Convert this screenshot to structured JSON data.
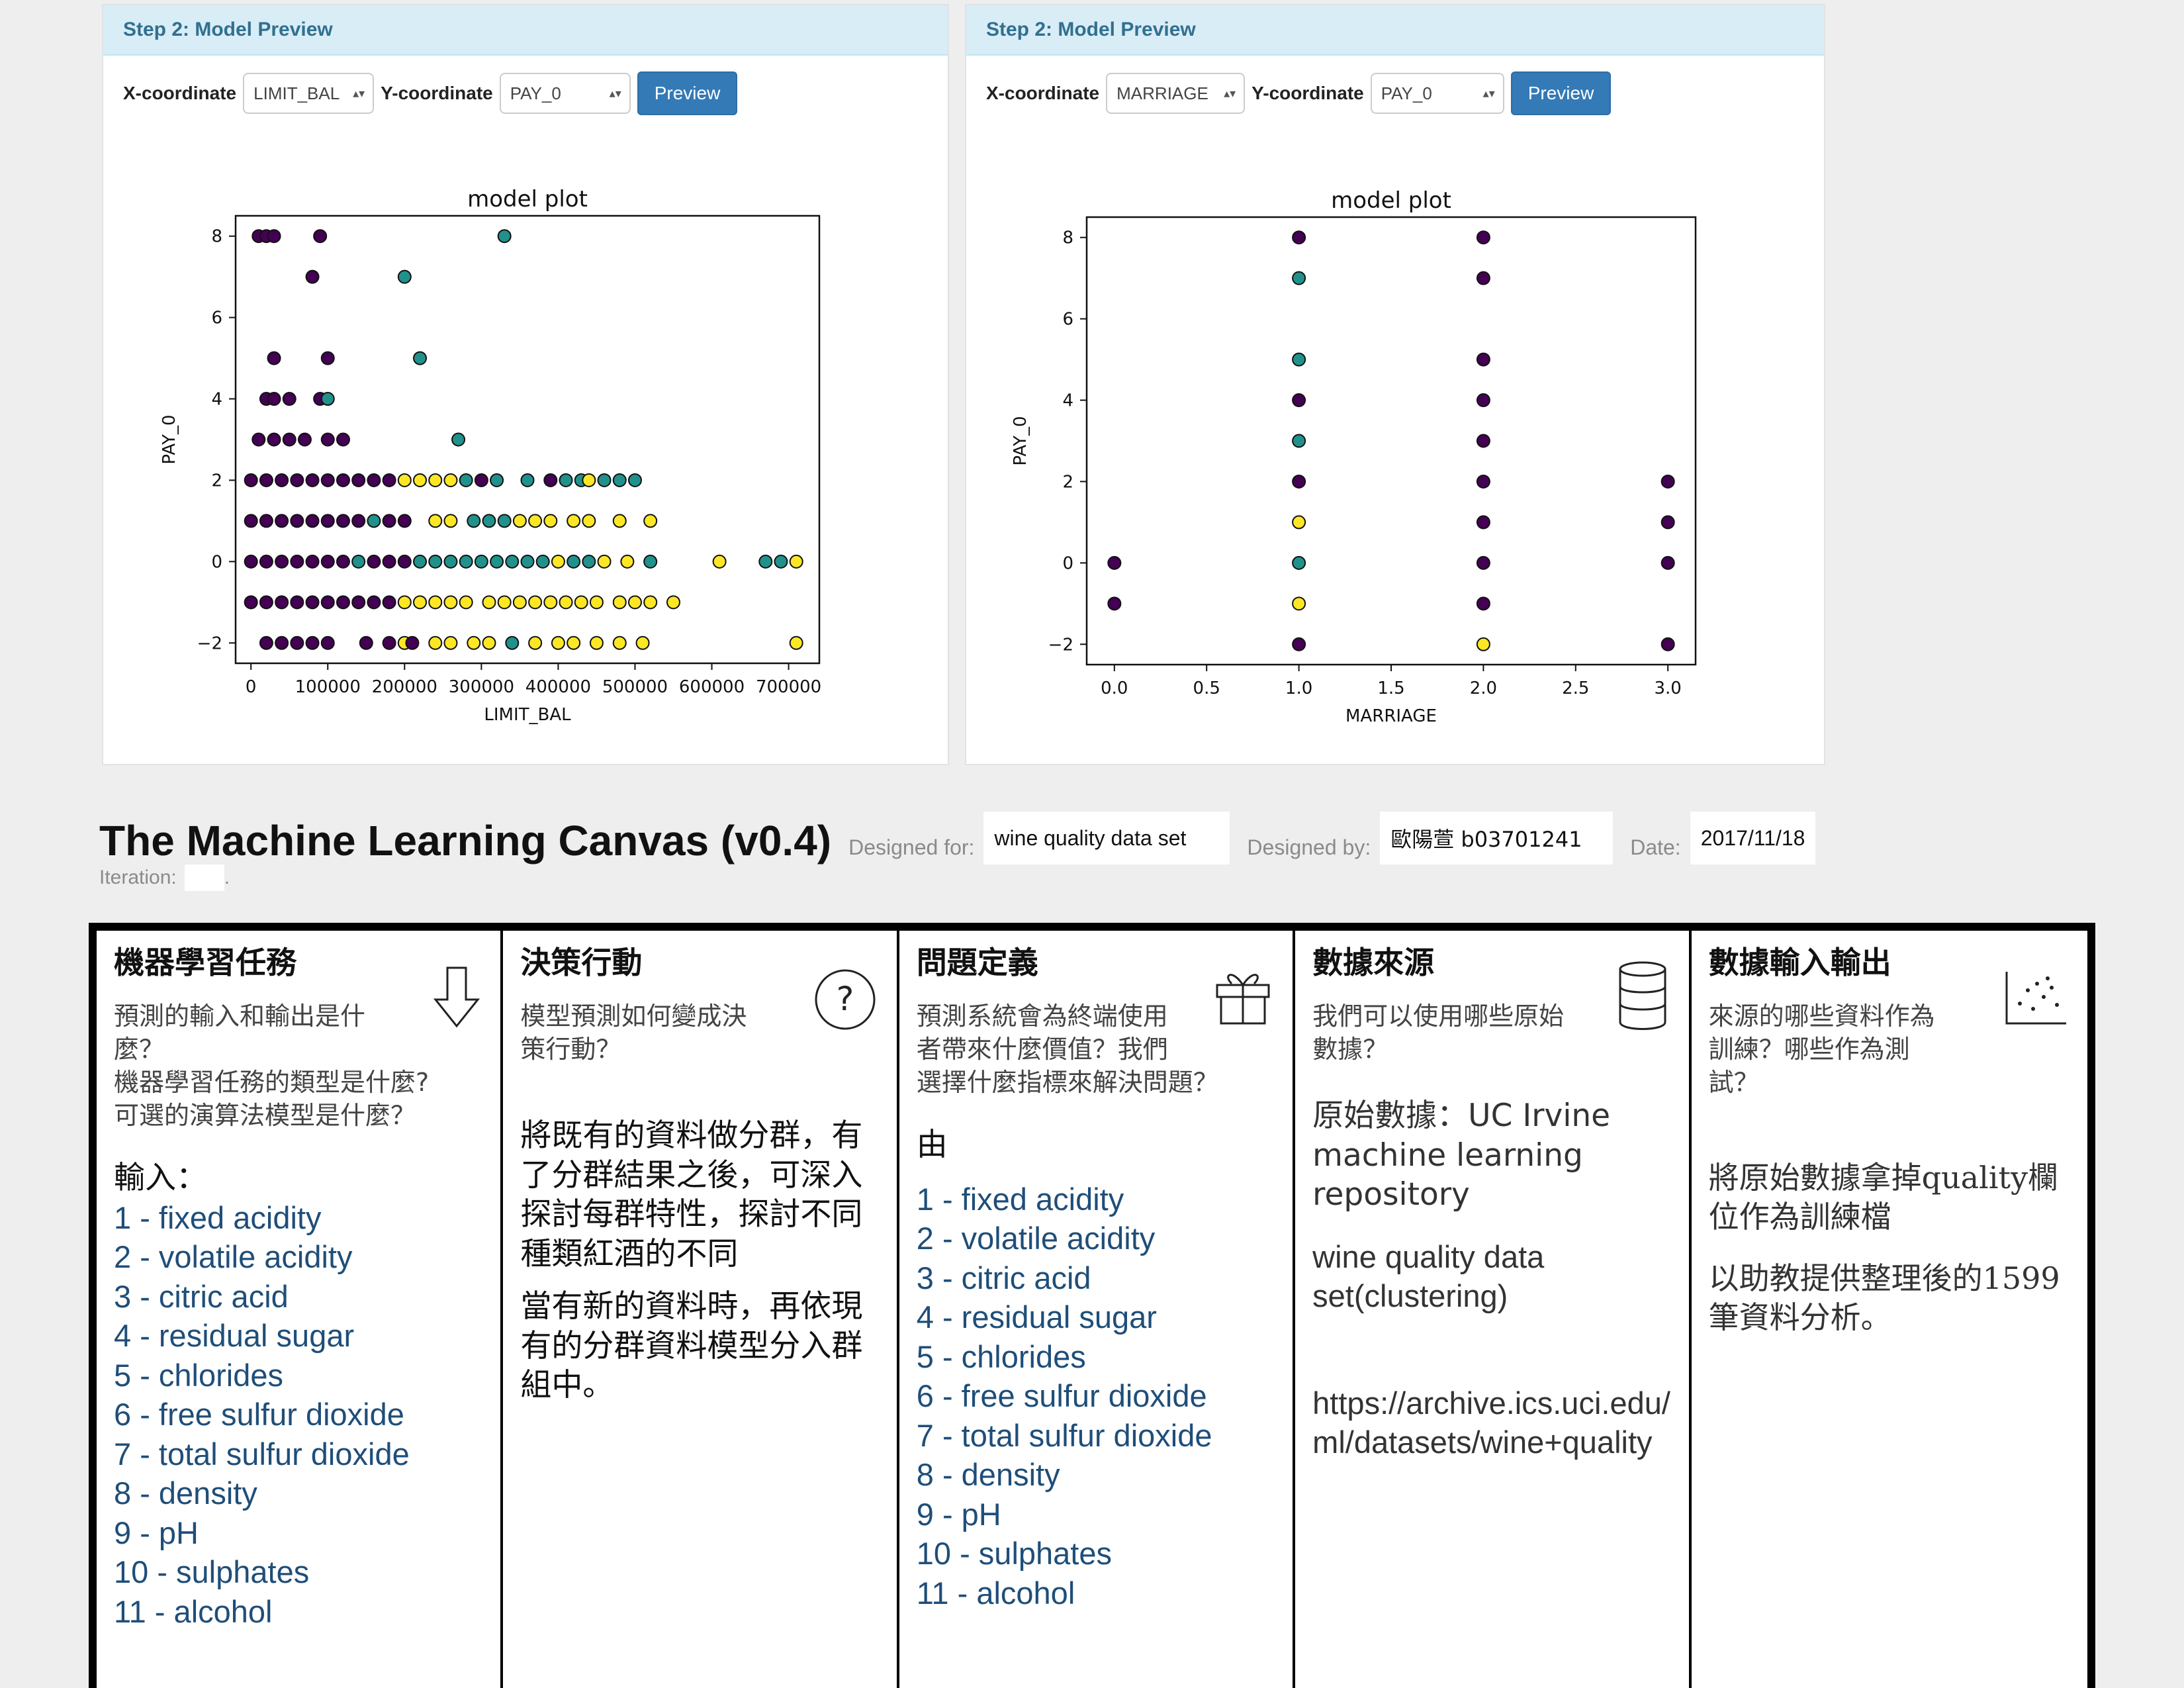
{
  "left_panel": {
    "header": "Step 2: Model Preview",
    "x_label": "X-coordinate",
    "x_value": "LIMIT_BAL",
    "y_label": "Y-coordinate",
    "y_value": "PAY_0",
    "button": "Preview"
  },
  "right_panel": {
    "header": "Step 2: Model Preview",
    "x_label": "X-coordinate",
    "x_value": "MARRIAGE",
    "y_label": "Y-coordinate",
    "y_value": "PAY_0",
    "button": "Preview"
  },
  "chart_data": [
    {
      "type": "scatter",
      "title": "model plot",
      "xlabel": "LIMIT_BAL",
      "ylabel": "PAY_0",
      "xlim": [
        -20000,
        740000
      ],
      "ylim": [
        -2.5,
        8.5
      ],
      "x_ticks": [
        0,
        100000,
        200000,
        300000,
        400000,
        500000,
        600000,
        700000
      ],
      "y_ticks": [
        -2,
        0,
        2,
        4,
        6,
        8
      ],
      "colors": {
        "0": "#440154",
        "1": "#21918c",
        "2": "#fde725"
      },
      "points": [
        [
          10000,
          8,
          0
        ],
        [
          20000,
          8,
          0
        ],
        [
          30000,
          8,
          0
        ],
        [
          90000,
          8,
          0
        ],
        [
          330000,
          8,
          1
        ],
        [
          80000,
          7,
          0
        ],
        [
          200000,
          7,
          1
        ],
        [
          30000,
          5,
          0
        ],
        [
          100000,
          5,
          0
        ],
        [
          220000,
          5,
          1
        ],
        [
          20000,
          4,
          0
        ],
        [
          30000,
          4,
          0
        ],
        [
          50000,
          4,
          0
        ],
        [
          90000,
          4,
          0
        ],
        [
          100000,
          4,
          1
        ],
        [
          10000,
          3,
          0
        ],
        [
          30000,
          3,
          0
        ],
        [
          50000,
          3,
          0
        ],
        [
          70000,
          3,
          0
        ],
        [
          100000,
          3,
          0
        ],
        [
          120000,
          3,
          0
        ],
        [
          270000,
          3,
          1
        ],
        [
          0,
          2,
          0
        ],
        [
          20000,
          2,
          0
        ],
        [
          40000,
          2,
          0
        ],
        [
          60000,
          2,
          0
        ],
        [
          80000,
          2,
          0
        ],
        [
          100000,
          2,
          0
        ],
        [
          120000,
          2,
          0
        ],
        [
          140000,
          2,
          0
        ],
        [
          160000,
          2,
          0
        ],
        [
          180000,
          2,
          0
        ],
        [
          200000,
          2,
          2
        ],
        [
          220000,
          2,
          2
        ],
        [
          240000,
          2,
          2
        ],
        [
          260000,
          2,
          2
        ],
        [
          280000,
          2,
          1
        ],
        [
          300000,
          2,
          0
        ],
        [
          320000,
          2,
          1
        ],
        [
          360000,
          2,
          1
        ],
        [
          390000,
          2,
          0
        ],
        [
          410000,
          2,
          1
        ],
        [
          430000,
          2,
          1
        ],
        [
          440000,
          2,
          2
        ],
        [
          460000,
          2,
          1
        ],
        [
          480000,
          2,
          1
        ],
        [
          500000,
          2,
          1
        ],
        [
          0,
          1,
          0
        ],
        [
          20000,
          1,
          0
        ],
        [
          40000,
          1,
          0
        ],
        [
          60000,
          1,
          0
        ],
        [
          80000,
          1,
          0
        ],
        [
          100000,
          1,
          0
        ],
        [
          120000,
          1,
          0
        ],
        [
          140000,
          1,
          0
        ],
        [
          160000,
          1,
          1
        ],
        [
          180000,
          1,
          0
        ],
        [
          200000,
          1,
          0
        ],
        [
          240000,
          1,
          2
        ],
        [
          260000,
          1,
          2
        ],
        [
          290000,
          1,
          1
        ],
        [
          310000,
          1,
          1
        ],
        [
          330000,
          1,
          1
        ],
        [
          350000,
          1,
          2
        ],
        [
          370000,
          1,
          2
        ],
        [
          390000,
          1,
          2
        ],
        [
          420000,
          1,
          2
        ],
        [
          440000,
          1,
          2
        ],
        [
          480000,
          1,
          2
        ],
        [
          520000,
          1,
          2
        ],
        [
          0,
          0,
          0
        ],
        [
          20000,
          0,
          0
        ],
        [
          40000,
          0,
          0
        ],
        [
          60000,
          0,
          0
        ],
        [
          80000,
          0,
          0
        ],
        [
          100000,
          0,
          0
        ],
        [
          120000,
          0,
          0
        ],
        [
          140000,
          0,
          1
        ],
        [
          160000,
          0,
          0
        ],
        [
          180000,
          0,
          0
        ],
        [
          200000,
          0,
          0
        ],
        [
          220000,
          0,
          1
        ],
        [
          240000,
          0,
          1
        ],
        [
          260000,
          0,
          1
        ],
        [
          280000,
          0,
          1
        ],
        [
          300000,
          0,
          1
        ],
        [
          320000,
          0,
          1
        ],
        [
          340000,
          0,
          1
        ],
        [
          360000,
          0,
          1
        ],
        [
          380000,
          0,
          1
        ],
        [
          400000,
          0,
          2
        ],
        [
          420000,
          0,
          1
        ],
        [
          440000,
          0,
          1
        ],
        [
          460000,
          0,
          2
        ],
        [
          490000,
          0,
          2
        ],
        [
          520000,
          0,
          1
        ],
        [
          610000,
          0,
          2
        ],
        [
          670000,
          0,
          1
        ],
        [
          690000,
          0,
          1
        ],
        [
          710000,
          0,
          2
        ],
        [
          0,
          -1,
          0
        ],
        [
          20000,
          -1,
          0
        ],
        [
          40000,
          -1,
          0
        ],
        [
          60000,
          -1,
          0
        ],
        [
          80000,
          -1,
          0
        ],
        [
          100000,
          -1,
          0
        ],
        [
          120000,
          -1,
          0
        ],
        [
          140000,
          -1,
          0
        ],
        [
          160000,
          -1,
          0
        ],
        [
          180000,
          -1,
          0
        ],
        [
          200000,
          -1,
          2
        ],
        [
          220000,
          -1,
          2
        ],
        [
          240000,
          -1,
          2
        ],
        [
          260000,
          -1,
          2
        ],
        [
          280000,
          -1,
          2
        ],
        [
          310000,
          -1,
          2
        ],
        [
          330000,
          -1,
          2
        ],
        [
          350000,
          -1,
          2
        ],
        [
          370000,
          -1,
          2
        ],
        [
          390000,
          -1,
          2
        ],
        [
          410000,
          -1,
          2
        ],
        [
          430000,
          -1,
          2
        ],
        [
          450000,
          -1,
          2
        ],
        [
          480000,
          -1,
          2
        ],
        [
          500000,
          -1,
          2
        ],
        [
          520000,
          -1,
          2
        ],
        [
          550000,
          -1,
          2
        ],
        [
          20000,
          -2,
          0
        ],
        [
          40000,
          -2,
          0
        ],
        [
          60000,
          -2,
          0
        ],
        [
          80000,
          -2,
          0
        ],
        [
          100000,
          -2,
          0
        ],
        [
          150000,
          -2,
          0
        ],
        [
          180000,
          -2,
          0
        ],
        [
          200000,
          -2,
          2
        ],
        [
          210000,
          -2,
          0
        ],
        [
          240000,
          -2,
          2
        ],
        [
          260000,
          -2,
          2
        ],
        [
          290000,
          -2,
          2
        ],
        [
          310000,
          -2,
          2
        ],
        [
          340000,
          -2,
          1
        ],
        [
          370000,
          -2,
          2
        ],
        [
          400000,
          -2,
          2
        ],
        [
          420000,
          -2,
          2
        ],
        [
          450000,
          -2,
          2
        ],
        [
          480000,
          -2,
          2
        ],
        [
          510000,
          -2,
          2
        ],
        [
          710000,
          -2,
          2
        ]
      ]
    },
    {
      "type": "scatter",
      "title": "model plot",
      "xlabel": "MARRIAGE",
      "ylabel": "PAY_0",
      "xlim": [
        -0.15,
        3.15
      ],
      "ylim": [
        -2.5,
        8.5
      ],
      "x_ticks": [
        0.0,
        0.5,
        1.0,
        1.5,
        2.0,
        2.5,
        3.0
      ],
      "x_tick_labels": [
        "0.0",
        "0.5",
        "1.0",
        "1.5",
        "2.0",
        "2.5",
        "3.0"
      ],
      "y_ticks": [
        -2,
        0,
        2,
        4,
        6,
        8
      ],
      "colors": {
        "0": "#440154",
        "1": "#21918c",
        "2": "#fde725"
      },
      "points": [
        [
          0,
          0,
          0
        ],
        [
          0,
          -1,
          0
        ],
        [
          1,
          8,
          0
        ],
        [
          1,
          7,
          1
        ],
        [
          1,
          5,
          1
        ],
        [
          1,
          4,
          0
        ],
        [
          1,
          3,
          1
        ],
        [
          1,
          2,
          0
        ],
        [
          1,
          1,
          2
        ],
        [
          1,
          0,
          1
        ],
        [
          1,
          -1,
          2
        ],
        [
          1,
          -2,
          0
        ],
        [
          2,
          8,
          0
        ],
        [
          2,
          7,
          0
        ],
        [
          2,
          5,
          0
        ],
        [
          2,
          4,
          0
        ],
        [
          2,
          3,
          0
        ],
        [
          2,
          2,
          0
        ],
        [
          2,
          1,
          0
        ],
        [
          2,
          0,
          0
        ],
        [
          2,
          -1,
          0
        ],
        [
          2,
          -2,
          2
        ],
        [
          3,
          2,
          0
        ],
        [
          3,
          1,
          0
        ],
        [
          3,
          0,
          0
        ],
        [
          3,
          -2,
          0
        ]
      ]
    }
  ],
  "canvas": {
    "title": "The Machine Learning Canvas (v0.4)",
    "designed_for_label": "Designed for:",
    "designed_for": "wine quality data set",
    "designed_by_label": "Designed by:",
    "designed_by": "歐陽萱 b03701241",
    "date_label": "Date:",
    "date": "2017/11/18",
    "iteration_label": "Iteration:",
    "iteration_suffix": "."
  },
  "cells": [
    {
      "title": "機器學習任務",
      "icon": "arrow-down-icon",
      "prompt": "預測的輸入和輸出是什\n麼？\n機器學習任務的類型是什麼?\n可選的演算法模型是什麼？",
      "heading": "輸入：",
      "items": [
        "1 - fixed acidity",
        "2 - volatile acidity",
        "3 - citric acid",
        "4 - residual sugar",
        "5 - chlorides",
        "6 - free sulfur dioxide",
        "7 - total sulfur dioxide",
        "8 - density",
        "9 - pH",
        "10 - sulphates",
        "11 - alcohol"
      ]
    },
    {
      "title": "決策行動",
      "icon": "question-icon",
      "prompt": "模型預測如何變成決\n策行動？",
      "para1": "將既有的資料做分群，有了分群結果之後，可深入探討每群特性，探討不同種類紅酒的不同",
      "para2": "當有新的資料時，再依現有的分群資料模型分入群組中。"
    },
    {
      "title": "問題定義",
      "icon": "gift-icon",
      "prompt": "預測系統會為終端使用\n者帶來什麼價值？我們\n選擇什麼指標來解決問題？",
      "heading": "由",
      "items": [
        "1 - fixed acidity",
        "2 - volatile acidity",
        "3 - citric acid",
        "4 - residual sugar",
        "5 - chlorides",
        "6 - free sulfur dioxide",
        "7 - total sulfur dioxide",
        "8 - density",
        "9 - pH",
        "10 - sulphates",
        "11 - alcohol"
      ]
    },
    {
      "title": "數據來源",
      "icon": "database-icon",
      "prompt": "我們可以使用哪些原始\n數據？",
      "source": "原始數據：UC Irvine machine learning repository",
      "dataset": "wine quality data set(clustering)",
      "url": "https://archive.ics.uci.edu/ml/datasets/wine+quality"
    },
    {
      "title": "數據輸入輸出",
      "icon": "scatter-icon",
      "prompt": "來源的哪些資料作為\n訓練？哪些作為測\n試？",
      "para1": "將原始數據拿掉quality欄位作為訓練檔",
      "para2": "以助教提供整理後的1599筆資料分析。"
    }
  ]
}
